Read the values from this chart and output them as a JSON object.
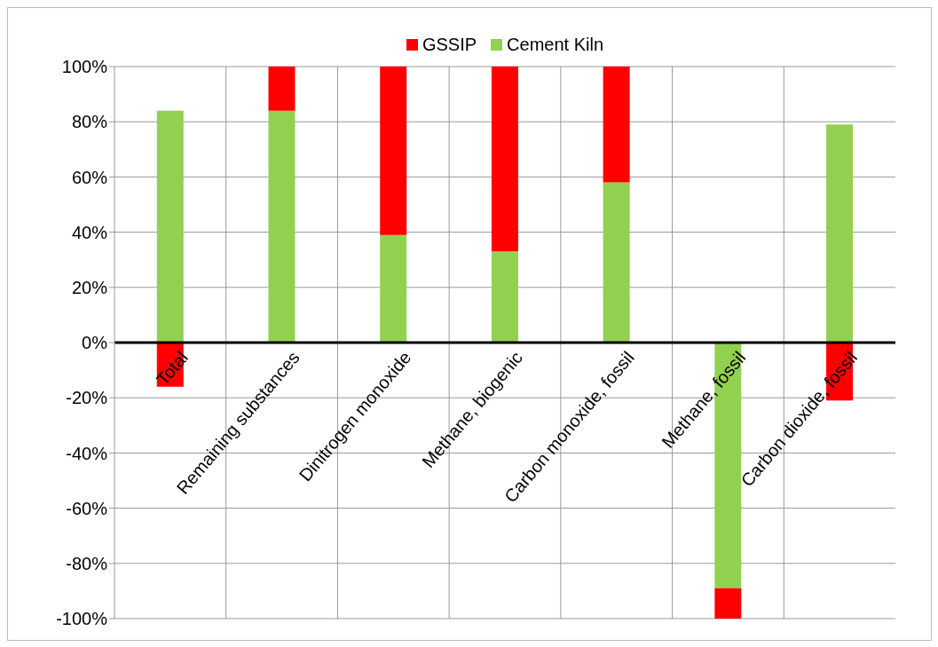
{
  "chart_data": {
    "type": "bar",
    "stacked": true,
    "categories": [
      "Total",
      "Remaining substances",
      "Dinitrogen monoxide",
      "Methane, biogenic",
      "Carbon monoxide, fossil",
      "Methane, fossil",
      "Carbon dioxide, fossil"
    ],
    "series": [
      {
        "name": "Cement Kiln",
        "color": "#92d050",
        "values": [
          84,
          84,
          39,
          33,
          58,
          -89,
          79
        ]
      },
      {
        "name": "GSSIP",
        "color": "#ff0000",
        "values": [
          -16,
          16,
          61,
          67,
          42,
          -11,
          -21
        ]
      }
    ],
    "ylim": [
      -100,
      100
    ],
    "yticks": [
      {
        "value": -100,
        "label": "-100%"
      },
      {
        "value": -80,
        "label": "-80%"
      },
      {
        "value": -60,
        "label": "-60%"
      },
      {
        "value": -40,
        "label": "-40%"
      },
      {
        "value": -20,
        "label": "-20%"
      },
      {
        "value": 0,
        "label": "0%"
      },
      {
        "value": 20,
        "label": "20%"
      },
      {
        "value": 40,
        "label": "40%"
      },
      {
        "value": 60,
        "label": "60%"
      },
      {
        "value": 80,
        "label": "80%"
      },
      {
        "value": 100,
        "label": "100%"
      }
    ],
    "grid": true,
    "legend": "top"
  }
}
